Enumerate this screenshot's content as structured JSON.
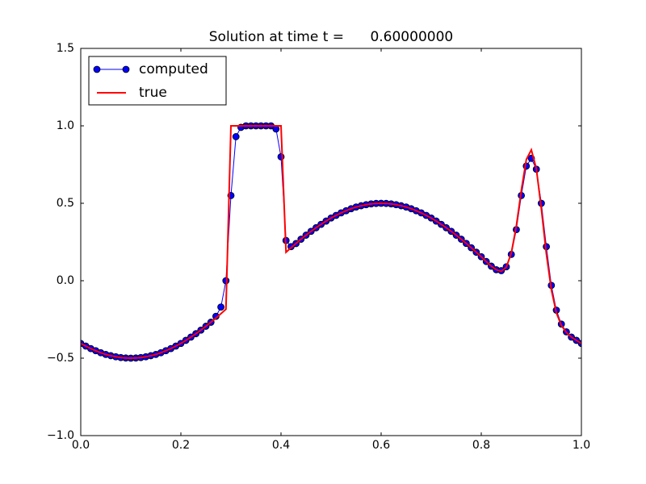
{
  "chart_data": {
    "type": "line",
    "title": "Solution at time t =      0.60000000",
    "x": [
      0,
      0.01,
      0.02,
      0.03,
      0.04,
      0.05,
      0.06,
      0.07,
      0.08,
      0.09,
      0.1,
      0.11,
      0.12,
      0.13,
      0.14,
      0.15,
      0.16,
      0.17,
      0.18,
      0.19,
      0.2,
      0.21,
      0.22,
      0.23,
      0.24,
      0.25,
      0.26,
      0.27,
      0.28,
      0.29,
      0.3,
      0.31,
      0.32,
      0.33,
      0.34,
      0.35,
      0.36,
      0.37,
      0.38,
      0.39,
      0.4,
      0.41,
      0.42,
      0.43,
      0.44,
      0.45,
      0.46,
      0.47,
      0.48,
      0.49,
      0.5,
      0.51,
      0.52,
      0.53,
      0.54,
      0.55,
      0.56,
      0.57,
      0.58,
      0.59,
      0.6,
      0.61,
      0.62,
      0.63,
      0.64,
      0.65,
      0.66,
      0.67,
      0.68,
      0.69,
      0.7,
      0.71,
      0.72,
      0.73,
      0.74,
      0.75,
      0.76,
      0.77,
      0.78,
      0.79,
      0.8,
      0.81,
      0.82,
      0.83,
      0.84,
      0.85,
      0.86,
      0.87,
      0.88,
      0.89,
      0.9,
      0.91,
      0.92,
      0.93,
      0.94,
      0.95,
      0.96,
      0.97,
      0.98,
      0.99,
      1
    ],
    "series": [
      {
        "name": "computed",
        "color": "#0000ff",
        "marker": "o",
        "values": [
          -0.405,
          -0.422,
          -0.438,
          -0.452,
          -0.465,
          -0.476,
          -0.484,
          -0.491,
          -0.496,
          -0.499,
          -0.5,
          -0.499,
          -0.496,
          -0.491,
          -0.484,
          -0.476,
          -0.465,
          -0.452,
          -0.438,
          -0.422,
          -0.405,
          -0.385,
          -0.364,
          -0.342,
          -0.319,
          -0.294,
          -0.268,
          -0.23,
          -0.17,
          0.0,
          0.55,
          0.93,
          0.99,
          1,
          1,
          1,
          1,
          1,
          1,
          0.98,
          0.8,
          0.26,
          0.22,
          0.24,
          0.268,
          0.294,
          0.319,
          0.342,
          0.364,
          0.385,
          0.405,
          0.422,
          0.438,
          0.452,
          0.465,
          0.476,
          0.484,
          0.491,
          0.496,
          0.499,
          0.5,
          0.499,
          0.496,
          0.491,
          0.484,
          0.476,
          0.465,
          0.452,
          0.438,
          0.422,
          0.405,
          0.385,
          0.364,
          0.342,
          0.319,
          0.294,
          0.268,
          0.241,
          0.213,
          0.184,
          0.155,
          0.124,
          0.094,
          0.071,
          0.065,
          0.09,
          0.17,
          0.33,
          0.55,
          0.74,
          0.79,
          0.72,
          0.5,
          0.22,
          -0.03,
          -0.19,
          -0.28,
          -0.33,
          -0.364,
          -0.385,
          -0.405
        ]
      },
      {
        "name": "true",
        "color": "#ff0000",
        "values": [
          -0.405,
          -0.422,
          -0.438,
          -0.452,
          -0.465,
          -0.476,
          -0.484,
          -0.491,
          -0.496,
          -0.499,
          -0.5,
          -0.499,
          -0.496,
          -0.491,
          -0.484,
          -0.476,
          -0.465,
          -0.452,
          -0.438,
          -0.422,
          -0.405,
          -0.385,
          -0.364,
          -0.342,
          -0.319,
          -0.294,
          -0.268,
          -0.241,
          -0.213,
          -0.184,
          1,
          1,
          1,
          1,
          1,
          1,
          1,
          1,
          1,
          1,
          1,
          0.184,
          0.213,
          0.241,
          0.268,
          0.294,
          0.319,
          0.342,
          0.364,
          0.385,
          0.405,
          0.422,
          0.438,
          0.452,
          0.465,
          0.476,
          0.484,
          0.491,
          0.496,
          0.499,
          0.5,
          0.499,
          0.496,
          0.491,
          0.484,
          0.476,
          0.465,
          0.452,
          0.438,
          0.422,
          0.405,
          0.385,
          0.364,
          0.342,
          0.319,
          0.294,
          0.268,
          0.241,
          0.213,
          0.184,
          0.155,
          0.124,
          0.094,
          0.071,
          0.061,
          0.087,
          0.179,
          0.352,
          0.583,
          0.783,
          0.845,
          0.723,
          0.464,
          0.174,
          -0.058,
          -0.207,
          -0.289,
          -0.334,
          -0.364,
          -0.385,
          -0.405
        ]
      }
    ],
    "xlim": [
      0,
      1
    ],
    "ylim": [
      -1,
      1.5
    ],
    "xticks": [
      {
        "value": 0,
        "label": "0.0"
      },
      0.2,
      0.4,
      0.6,
      0.8,
      {
        "value": 1,
        "label": "1.0"
      }
    ],
    "yticks": [
      {
        "value": -1,
        "label": "−1.0"
      },
      {
        "value": -0.5,
        "label": "−0.5"
      },
      {
        "value": 0,
        "label": "0.0"
      },
      0.5,
      {
        "value": 1,
        "label": "1.0"
      },
      1.5
    ],
    "legend": "upper left",
    "grid": false
  }
}
